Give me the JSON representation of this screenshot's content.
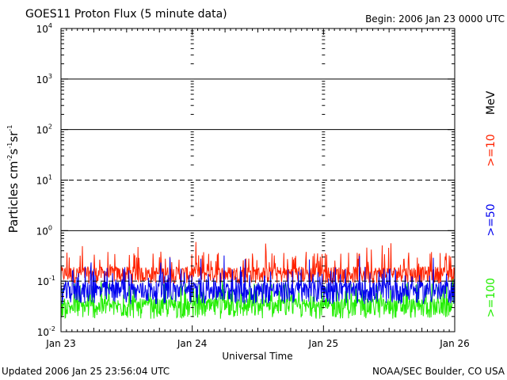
{
  "chart_data": {
    "type": "line",
    "title": "GOES11 Proton Flux (5 minute data)",
    "begin_label": "Begin: 2006 Jan 23 0000 UTC",
    "footer_left": "Updated 2006 Jan 25 23:56:04 UTC",
    "footer_right": "NOAA/SEC Boulder, CO USA",
    "xlabel": "Universal Time",
    "ylabel": {
      "base": "Particles cm",
      "sup1": "-2",
      "s": "s",
      "sup2": "-1",
      "sr": "sr",
      "sup3": "-1"
    },
    "ylim": [
      0.01,
      10000
    ],
    "yscale": "log",
    "y_ticks": [
      {
        "base": "10",
        "exp": "4",
        "value": 10000
      },
      {
        "base": "10",
        "exp": "3",
        "value": 1000
      },
      {
        "base": "10",
        "exp": "2",
        "value": 100
      },
      {
        "base": "10",
        "exp": "1",
        "value": 10
      },
      {
        "base": "10",
        "exp": "0",
        "value": 1
      },
      {
        "base": "10",
        "exp": "-1",
        "value": 0.1
      },
      {
        "base": "10",
        "exp": "-2",
        "value": 0.01
      }
    ],
    "reference_lines": [
      {
        "value": 1000,
        "style": "solid"
      },
      {
        "value": 100,
        "style": "solid"
      },
      {
        "value": 10,
        "style": "dashed"
      },
      {
        "value": 1,
        "style": "solid"
      },
      {
        "value": 0.1,
        "style": "dashed"
      }
    ],
    "x_ticks": [
      "Jan 23",
      "Jan 24",
      "Jan 25",
      "Jan 26"
    ],
    "x_range_days": [
      0,
      3
    ],
    "side_labels": {
      "mev": "MeV",
      "ge10": ">=10",
      "ge50": ">=50",
      "ge100": ">=100"
    },
    "series": [
      {
        "name": ">=10 MeV",
        "color": "#ff2200",
        "baseline": 0.15,
        "peak": 0.55,
        "floor": 0.09,
        "step_minutes": 5,
        "values_summary": "noisy background ~0.1-0.5"
      },
      {
        "name": ">=50 MeV",
        "color": "#0000ee",
        "baseline": 0.075,
        "peak": 0.3,
        "floor": 0.035,
        "step_minutes": 5,
        "values_summary": "noisy background ~0.04-0.3"
      },
      {
        "name": ">=100 MeV",
        "color": "#22ee00",
        "baseline": 0.035,
        "peak": 0.12,
        "floor": 0.018,
        "step_minutes": 5,
        "values_summary": "noisy background ~0.02-0.1"
      }
    ],
    "grid": false
  }
}
